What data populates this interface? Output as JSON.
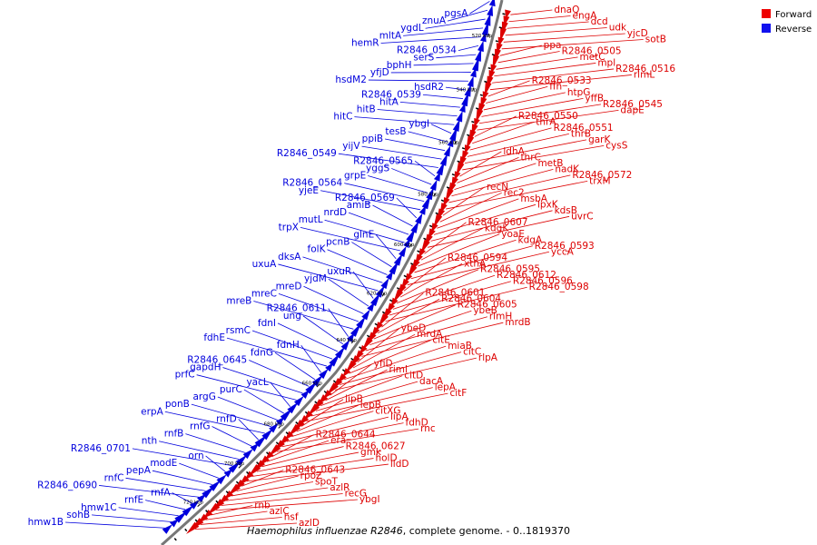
{
  "caption": {
    "organism": "Haemophilus influenzae R2846",
    "rest": ", complete genome. - 0..1819370"
  },
  "legend": [
    {
      "label": "Forward",
      "color": "#ee0000"
    },
    {
      "label": "Reverse",
      "color": "#1111ee"
    }
  ],
  "colors": {
    "forward": "#dd0000",
    "reverse": "#0000dd",
    "backbone": "#777777"
  },
  "ticks": [
    "520 kbp",
    "540 kbp",
    "560 kbp",
    "580 kbp",
    "600 kbp",
    "620 kbp",
    "640 kbp",
    "660 kbp",
    "680 kbp",
    "700 kbp",
    "720 kbp"
  ],
  "forward_labels": [
    "dnaQ",
    "engA",
    "dcd",
    "udk",
    "yjcD",
    "sotB",
    "ppa",
    "R2846_0505",
    "metC",
    "mpl",
    "R2846_0516",
    "rlmL",
    "R2846_0533",
    "ffh",
    "htpG",
    "yffB",
    "R2846_0545",
    "dapE",
    "R2846_0550",
    "thrA",
    "R2846_0551",
    "thrB",
    "garK",
    "cysS",
    "ldhA",
    "thrC",
    "metB",
    "nadK",
    "R2846_0572",
    "trxM",
    "recN",
    "rec2",
    "msbA",
    "lpxK",
    "kdsB",
    "uvrC",
    "R2846_0607",
    "kdgK",
    "yoaE",
    "kdgA",
    "R2846_0593",
    "yccA",
    "R2846_0594",
    "xthA",
    "R2846_0595",
    "R2846_0612",
    "R2846_0596",
    "R2846_0598",
    "R2846_0601",
    "R2846_0604",
    "R2846_0605",
    "ybeB",
    "rlmH",
    "mrdB",
    "ybeD",
    "mrdA",
    "citE",
    "miaB",
    "citC",
    "rlpA",
    "yfiD",
    "riml",
    "citD",
    "dacA",
    "lepA",
    "citF",
    "lipB",
    "lepB",
    "citXG",
    "lipA",
    "fdhD",
    "rnc",
    "R2846_0644",
    "era",
    "R2846_0627",
    "gmk",
    "holD",
    "lldD",
    "R2846_0643",
    "rpoZ",
    "spoT",
    "azlR",
    "recG",
    "ybgI",
    "rnb",
    "azlC",
    "hsf",
    "azlD"
  ],
  "reverse_labels": [
    "pgsA",
    "znuA",
    "ygdL",
    "mltA",
    "hemR",
    "R2846_0534",
    "serS",
    "bphH",
    "yfjD",
    "hsdM2",
    "hsdR2",
    "R2846_0539",
    "hitA",
    "hitB",
    "hitC",
    "ybgI",
    "tesB",
    "ppiB",
    "yijV",
    "R2846_0549",
    "R2846_0565",
    "yggS",
    "grpE",
    "R2846_0564",
    "yjeE",
    "R2846_0569",
    "amiB",
    "nrdD",
    "mutL",
    "trpX",
    "glnE",
    "pcnB",
    "folK",
    "dksA",
    "uxuA",
    "uxuR",
    "yjdM",
    "mreD",
    "mreC",
    "mreB",
    "R2846_0611",
    "ung",
    "fdnI",
    "rsmC",
    "fdhE",
    "fdnH",
    "fdnG",
    "R2846_0645",
    "gapdH",
    "prfC",
    "yacL",
    "purC",
    "argG",
    "ponB",
    "erpA",
    "rnfD",
    "rnfG",
    "rnfB",
    "nth",
    "R2846_0701",
    "orn",
    "modE",
    "pepA",
    "rnfC",
    "R2846_0690",
    "rnfA",
    "rnfE",
    "hmw1C",
    "sohB",
    "hmw1B"
  ]
}
